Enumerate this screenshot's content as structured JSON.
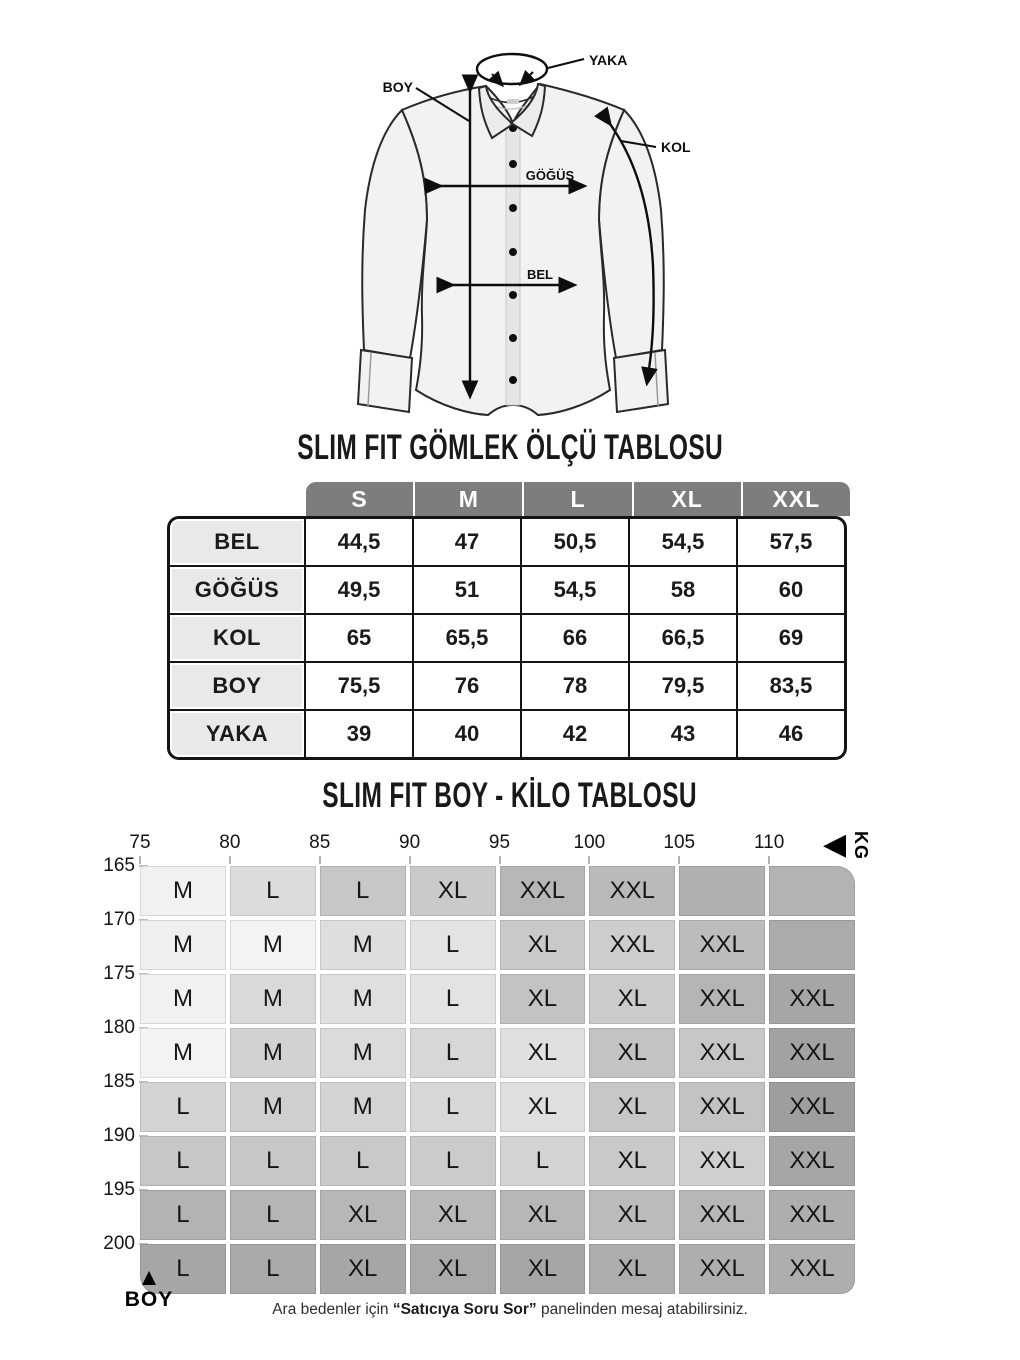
{
  "diagram": {
    "labels": {
      "yaka": "YAKA",
      "boy": "BOY",
      "kol": "KOL",
      "gogus": "GÖĞÜS",
      "bel": "BEL"
    }
  },
  "size_table": {
    "title": "SLIM FIT GÖMLEK ÖLÇÜ TABLOSU",
    "columns": [
      "S",
      "M",
      "L",
      "XL",
      "XXL"
    ],
    "rows": [
      {
        "label": "BEL",
        "values": [
          "44,5",
          "47",
          "50,5",
          "54,5",
          "57,5"
        ]
      },
      {
        "label": "GÖĞÜS",
        "values": [
          "49,5",
          "51",
          "54,5",
          "58",
          "60"
        ]
      },
      {
        "label": "KOL",
        "values": [
          "65",
          "65,5",
          "66",
          "66,5",
          "69"
        ]
      },
      {
        "label": "BOY",
        "values": [
          "75,5",
          "76",
          "78",
          "79,5",
          "83,5"
        ]
      },
      {
        "label": "YAKA",
        "values": [
          "39",
          "40",
          "42",
          "43",
          "46"
        ]
      }
    ]
  },
  "fit_table": {
    "title": "SLIM FIT BOY - KİLO TABLOSU",
    "kg_label": "KG",
    "kg_arrow": "◀",
    "boy_label": "BOY",
    "boy_arrow": "▲",
    "weights": [
      "75",
      "80",
      "85",
      "90",
      "95",
      "100",
      "105",
      "110"
    ],
    "heights": [
      "165",
      "170",
      "175",
      "180",
      "185",
      "190",
      "195",
      "200"
    ],
    "cells": [
      [
        {
          "t": "M",
          "c": "#f1f1f1"
        },
        {
          "t": "L",
          "c": "#dcdcdc"
        },
        {
          "t": "L",
          "c": "#c7c7c7"
        },
        {
          "t": "XL",
          "c": "#cacaca"
        },
        {
          "t": "XXL",
          "c": "#b7b7b7"
        },
        {
          "t": "XXL",
          "c": "#bababa"
        },
        {
          "t": "",
          "c": "#b0b0b0"
        },
        {
          "t": "",
          "c": "#b3b3b3"
        }
      ],
      [
        {
          "t": "M",
          "c": "#efefef"
        },
        {
          "t": "M",
          "c": "#f3f3f3"
        },
        {
          "t": "M",
          "c": "#dedede"
        },
        {
          "t": "L",
          "c": "#e3e3e3"
        },
        {
          "t": "XL",
          "c": "#c9c9c9"
        },
        {
          "t": "XXL",
          "c": "#cdcdcd"
        },
        {
          "t": "XXL",
          "c": "#bcbcbc"
        },
        {
          "t": "",
          "c": "#ababab"
        }
      ],
      [
        {
          "t": "M",
          "c": "#f1f1f1"
        },
        {
          "t": "M",
          "c": "#d9d9d9"
        },
        {
          "t": "M",
          "c": "#dfdfdf"
        },
        {
          "t": "L",
          "c": "#e3e3e3"
        },
        {
          "t": "XL",
          "c": "#c3c3c3"
        },
        {
          "t": "XL",
          "c": "#cbcbcb"
        },
        {
          "t": "XXL",
          "c": "#b5b5b5"
        },
        {
          "t": "XXL",
          "c": "#a6a6a6"
        }
      ],
      [
        {
          "t": "M",
          "c": "#f3f3f3"
        },
        {
          "t": "M",
          "c": "#d2d2d2"
        },
        {
          "t": "M",
          "c": "#dbdbdb"
        },
        {
          "t": "L",
          "c": "#d7d7d7"
        },
        {
          "t": "XL",
          "c": "#e0e0e0"
        },
        {
          "t": "XL",
          "c": "#c3c3c3"
        },
        {
          "t": "XXL",
          "c": "#c7c7c7"
        },
        {
          "t": "XXL",
          "c": "#a2a2a2"
        }
      ],
      [
        {
          "t": "L",
          "c": "#d3d3d3"
        },
        {
          "t": "M",
          "c": "#cfcfcf"
        },
        {
          "t": "M",
          "c": "#d3d3d3"
        },
        {
          "t": "L",
          "c": "#d7d7d7"
        },
        {
          "t": "XL",
          "c": "#dfdfdf"
        },
        {
          "t": "XL",
          "c": "#c7c7c7"
        },
        {
          "t": "XXL",
          "c": "#c3c3c3"
        },
        {
          "t": "XXL",
          "c": "#9e9e9e"
        }
      ],
      [
        {
          "t": "L",
          "c": "#c7c7c7"
        },
        {
          "t": "L",
          "c": "#c7c7c7"
        },
        {
          "t": "L",
          "c": "#c9c9c9"
        },
        {
          "t": "L",
          "c": "#cbcbcb"
        },
        {
          "t": "L",
          "c": "#d3d3d3"
        },
        {
          "t": "XL",
          "c": "#c9c9c9"
        },
        {
          "t": "XXL",
          "c": "#cfcfcf"
        },
        {
          "t": "XXL",
          "c": "#a6a6a6"
        }
      ],
      [
        {
          "t": "L",
          "c": "#b3b3b3"
        },
        {
          "t": "L",
          "c": "#b5b5b5"
        },
        {
          "t": "XL",
          "c": "#b7b7b7"
        },
        {
          "t": "XL",
          "c": "#b9b9b9"
        },
        {
          "t": "XL",
          "c": "#b7b7b7"
        },
        {
          "t": "XL",
          "c": "#bbbbbb"
        },
        {
          "t": "XXL",
          "c": "#b7b7b7"
        },
        {
          "t": "XXL",
          "c": "#aeaeae"
        }
      ],
      [
        {
          "t": "L",
          "c": "#a6a6a6"
        },
        {
          "t": "L",
          "c": "#a9a9a9"
        },
        {
          "t": "XL",
          "c": "#a6a6a6"
        },
        {
          "t": "XL",
          "c": "#a9a9a9"
        },
        {
          "t": "XL",
          "c": "#a6a6a6"
        },
        {
          "t": "XL",
          "c": "#adadad"
        },
        {
          "t": "XXL",
          "c": "#aeaeae"
        },
        {
          "t": "XXL",
          "c": "#aeaeae"
        }
      ]
    ]
  },
  "footer": {
    "pre": "Ara bedenler için ",
    "bold": "“Satıcıya Soru Sor”",
    "post": " panelinden mesaj atabilirsiniz."
  },
  "colors": {
    "table_header_bg": "#7d7d7d",
    "table_label_bg": "#e9e9e9",
    "table_border": "#141414",
    "shirt_fill": "#f2f2f2",
    "shirt_outline": "#2a2a2a"
  },
  "chart_data": [
    {
      "type": "table",
      "title": "SLIM FIT GÖMLEK ÖLÇÜ TABLOSU",
      "columns": [
        "S",
        "M",
        "L",
        "XL",
        "XXL"
      ],
      "rows": {
        "BEL": [
          44.5,
          47,
          50.5,
          54.5,
          57.5
        ],
        "GÖĞÜS": [
          49.5,
          51,
          54.5,
          58,
          60
        ],
        "KOL": [
          65,
          65.5,
          66,
          66.5,
          69
        ],
        "BOY": [
          75.5,
          76,
          78,
          79.5,
          83.5
        ],
        "YAKA": [
          39,
          40,
          42,
          43,
          46
        ]
      }
    },
    {
      "type": "heatmap",
      "title": "SLIM FIT BOY - KİLO TABLOSU",
      "xlabel": "KG",
      "ylabel": "BOY",
      "x": [
        75,
        80,
        85,
        90,
        95,
        100,
        105,
        110
      ],
      "y": [
        165,
        170,
        175,
        180,
        185,
        190,
        195,
        200
      ],
      "values": [
        [
          "M",
          "L",
          "L",
          "XL",
          "XXL",
          "XXL",
          "",
          ""
        ],
        [
          "M",
          "M",
          "M",
          "L",
          "XL",
          "XXL",
          "XXL",
          ""
        ],
        [
          "M",
          "M",
          "M",
          "L",
          "XL",
          "XL",
          "XXL",
          "XXL"
        ],
        [
          "M",
          "M",
          "M",
          "L",
          "XL",
          "XL",
          "XXL",
          "XXL"
        ],
        [
          "L",
          "M",
          "M",
          "L",
          "XL",
          "XL",
          "XXL",
          "XXL"
        ],
        [
          "L",
          "L",
          "L",
          "L",
          "L",
          "XL",
          "XXL",
          "XXL"
        ],
        [
          "L",
          "L",
          "XL",
          "XL",
          "XL",
          "XL",
          "XXL",
          "XXL"
        ],
        [
          "L",
          "L",
          "XL",
          "XL",
          "XL",
          "XL",
          "XXL",
          "XXL"
        ]
      ]
    }
  ]
}
